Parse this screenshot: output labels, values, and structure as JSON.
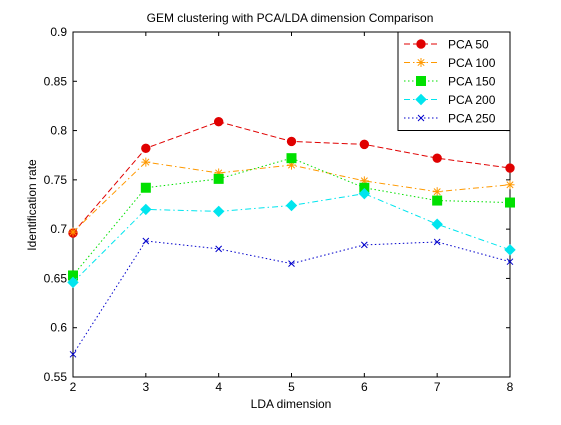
{
  "chart_data": {
    "type": "line",
    "title": "GEM clustering with PCA/LDA dimension Comparison",
    "xlabel": "LDA dimension",
    "ylabel": "Identification rate",
    "xlim": [
      2,
      8
    ],
    "ylim": [
      0.55,
      0.9
    ],
    "x": [
      2,
      3,
      4,
      5,
      6,
      7,
      8
    ],
    "x_ticks": [
      "2",
      "3",
      "4",
      "5",
      "6",
      "7",
      "8"
    ],
    "y_ticks": [
      "0.55",
      "0.6",
      "0.65",
      "0.7",
      "0.75",
      "0.8",
      "0.85",
      "0.9"
    ],
    "grid": false,
    "legend_position": "top-right",
    "series": [
      {
        "name": "PCA 50",
        "values": [
          0.696,
          0.782,
          0.809,
          0.789,
          0.786,
          0.772,
          0.762
        ],
        "color": "#e00000",
        "dash": "dashed",
        "marker": "circle"
      },
      {
        "name": "PCA 100",
        "values": [
          0.697,
          0.768,
          0.757,
          0.765,
          0.749,
          0.738,
          0.745
        ],
        "color": "#ff9900",
        "dash": "dashdot",
        "marker": "star"
      },
      {
        "name": "PCA 150",
        "values": [
          0.653,
          0.742,
          0.751,
          0.772,
          0.742,
          0.729,
          0.727
        ],
        "color": "#00e000",
        "dash": "dotted",
        "marker": "square"
      },
      {
        "name": "PCA 200",
        "values": [
          0.646,
          0.72,
          0.718,
          0.724,
          0.736,
          0.705,
          0.679
        ],
        "color": "#00e5ee",
        "dash": "dashdot",
        "marker": "diamond"
      },
      {
        "name": "PCA 250",
        "values": [
          0.573,
          0.688,
          0.68,
          0.665,
          0.684,
          0.687,
          0.667
        ],
        "color": "#0000cc",
        "dash": "dotted",
        "marker": "x"
      }
    ]
  }
}
